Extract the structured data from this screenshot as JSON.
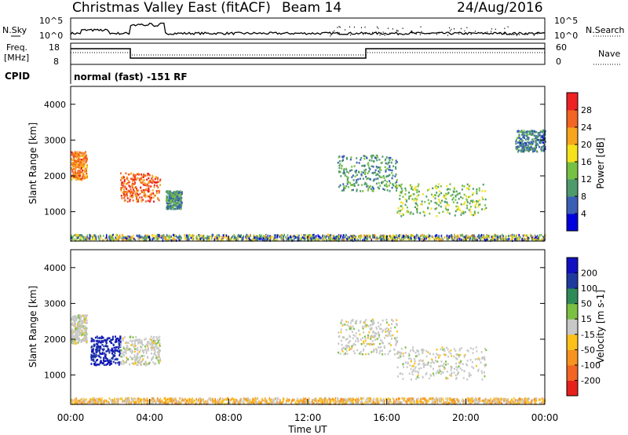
{
  "header": {
    "title": "Christmas Valley East (fitACF)",
    "beam": "Beam 14",
    "date": "24/Aug/2016"
  },
  "noise_panel": {
    "left_label": "N.Sky",
    "right_label": "N.Search",
    "left_ticks": [
      "10^5",
      "10^0"
    ],
    "right_ticks": [
      "10^5",
      "10^0"
    ]
  },
  "freq_panel": {
    "left_label_1": "Freq.",
    "left_label_2": "[MHz]",
    "right_label": "Nave",
    "left_ticks": [
      "18",
      "8"
    ],
    "right_ticks": [
      "60",
      "0"
    ]
  },
  "cpid_panel": {
    "label": "CPID",
    "text": "normal (fast) -151 RF"
  },
  "colors": {
    "power": [
      "#0000dd",
      "#3b5fb5",
      "#4f9a6c",
      "#76c043",
      "#f5e11c",
      "#f7a51c",
      "#f26522",
      "#ee2222"
    ],
    "velocity": [
      "#e6201c",
      "#f26522",
      "#f7931e",
      "#fcc01a",
      "#c8c8c8",
      "#7bc043",
      "#2e8b57",
      "#1f3a9e",
      "#1010c0"
    ]
  },
  "chart_data": [
    {
      "type": "heatmap",
      "quantity": "Power",
      "ylabel": "Slant Range [km]",
      "xlabel": "Time UT",
      "colorbar_label": "Power [dB]",
      "colorbar_ticks": [
        "28",
        "24",
        "20",
        "16",
        "12",
        "8",
        "4"
      ],
      "xlim": [
        0,
        24
      ],
      "ylim": [
        180,
        4500
      ],
      "yticks": [
        "4000",
        "3000",
        "2000",
        "1000"
      ],
      "features": [
        {
          "t0": 0.0,
          "t1": 0.8,
          "r0": 1900,
          "r1": 2700,
          "level": 24
        },
        {
          "t0": 2.5,
          "t1": 4.5,
          "r0": 1300,
          "r1": 2100,
          "level": 26
        },
        {
          "t0": 4.8,
          "t1": 5.6,
          "r0": 1100,
          "r1": 1600,
          "level": 10
        },
        {
          "t0": 13.5,
          "t1": 16.5,
          "r0": 1600,
          "r1": 2600,
          "level": 10
        },
        {
          "t0": 16.5,
          "t1": 21.0,
          "r0": 900,
          "r1": 1800,
          "level": 14
        },
        {
          "t0": 22.5,
          "t1": 24.0,
          "r0": 2700,
          "r1": 3300,
          "level": 8
        }
      ]
    },
    {
      "type": "heatmap",
      "quantity": "Velocity",
      "ylabel": "Slant Range [km]",
      "xlabel": "Time UT",
      "colorbar_label": "Velocity [m s-1]",
      "colorbar_ticks": [
        "200",
        "100",
        "50",
        "15",
        "-15",
        "-50",
        "-100",
        "-200"
      ],
      "xlim": [
        0,
        24
      ],
      "ylim": [
        180,
        4500
      ],
      "yticks": [
        "4000",
        "3000",
        "2000",
        "1000"
      ],
      "xticks": [
        "00:00",
        "04:00",
        "08:00",
        "12:00",
        "16:00",
        "20:00",
        "00:00"
      ],
      "features": [
        {
          "t0": 0.0,
          "t1": 0.8,
          "r0": 1900,
          "r1": 2700,
          "velocity": 0
        },
        {
          "t0": 1.0,
          "t1": 2.5,
          "r0": 1300,
          "r1": 2100,
          "velocity": 200
        },
        {
          "t0": 2.5,
          "t1": 4.5,
          "r0": 1300,
          "r1": 2100,
          "velocity": 0
        },
        {
          "t0": 13.5,
          "t1": 16.5,
          "r0": 1600,
          "r1": 2600,
          "velocity": 0
        },
        {
          "t0": 16.5,
          "t1": 21.0,
          "r0": 900,
          "r1": 1800,
          "velocity": 0
        }
      ]
    }
  ]
}
